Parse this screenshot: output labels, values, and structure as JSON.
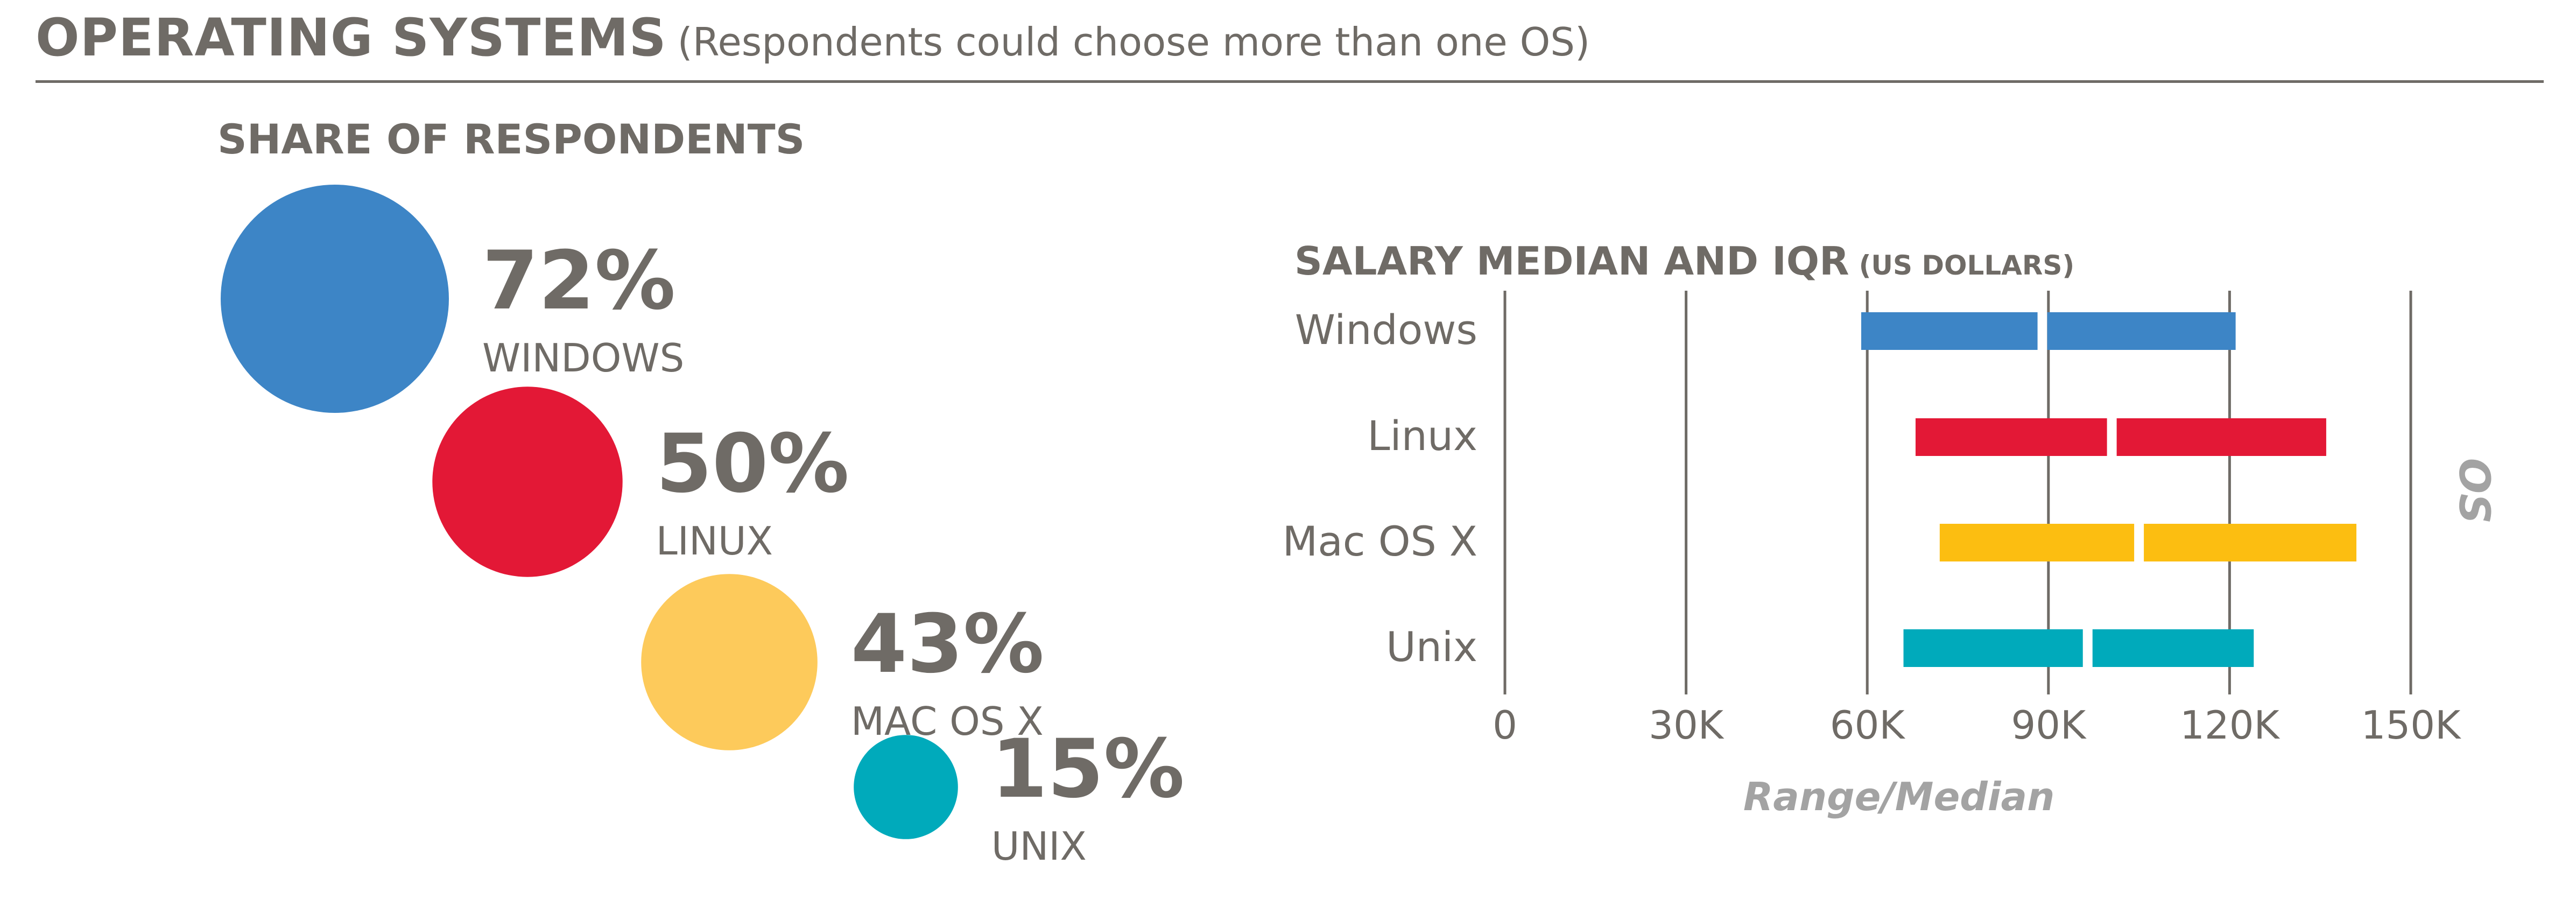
{
  "header": {
    "title": "OPERATING SYSTEMS",
    "subtitle": "(Respondents could choose more than one OS)"
  },
  "chart_data": [
    {
      "type": "bubble",
      "title": "SHARE OF RESPONDENTS",
      "unit": "%",
      "items": [
        {
          "label": "WINDOWS",
          "value": 72,
          "value_label": "72%",
          "color": "#3d85c6"
        },
        {
          "label": "LINUX",
          "value": 50,
          "value_label": "50%",
          "color": "#e31836"
        },
        {
          "label": "MAC OS X",
          "value": 43,
          "value_label": "43%",
          "color": "#fdca5b"
        },
        {
          "label": "UNIX",
          "value": 15,
          "value_label": "15%",
          "color": "#00aabb"
        }
      ]
    },
    {
      "type": "range-bar",
      "title": "SALARY MEDIAN AND IQR",
      "title_note": "(US DOLLARS)",
      "xlabel": "Range/Median",
      "ylabel": "OS",
      "xlim": [
        0,
        150000
      ],
      "x_ticks": [
        0,
        30000,
        60000,
        90000,
        120000,
        150000
      ],
      "x_tick_labels": [
        "0",
        "30K",
        "60K",
        "90K",
        "120K",
        "150K"
      ],
      "grid": true,
      "categories": [
        "Windows",
        "Linux",
        "Mac OS X",
        "Unix"
      ],
      "series": [
        {
          "category": "Windows",
          "q1": 59000,
          "median": 89000,
          "q3": 121000,
          "color": "#3d85c6"
        },
        {
          "category": "Linux",
          "q1": 68000,
          "median": 100500,
          "q3": 136000,
          "color": "#e31836"
        },
        {
          "category": "Mac OS X",
          "q1": 72000,
          "median": 105000,
          "q3": 141000,
          "color": "#fcbe11"
        },
        {
          "category": "Unix",
          "q1": 66000,
          "median": 96500,
          "q3": 124000,
          "color": "#00aabb"
        }
      ]
    }
  ]
}
